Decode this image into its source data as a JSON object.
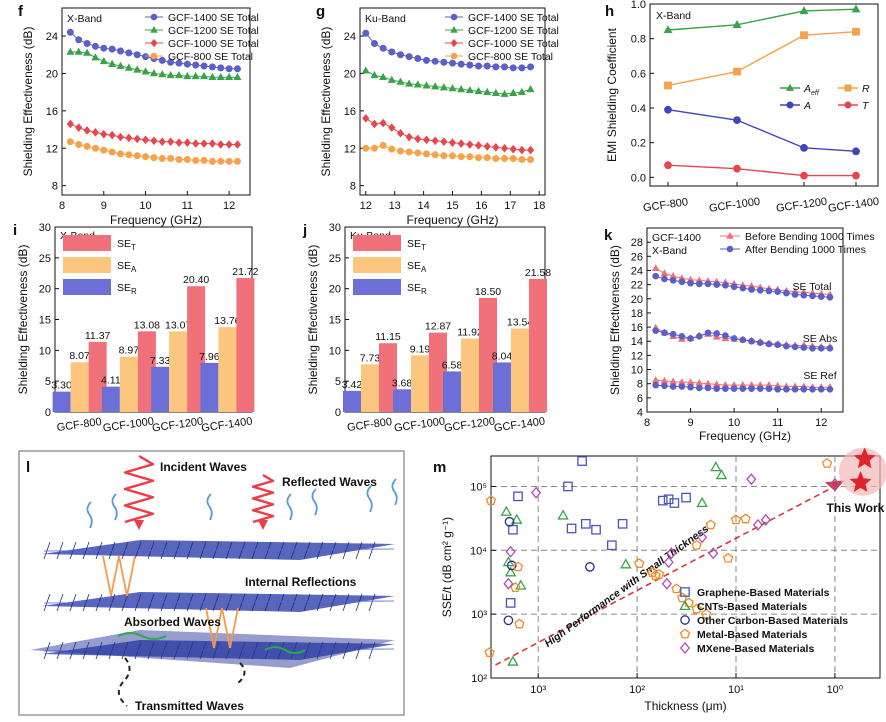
{
  "panels": {
    "f": {
      "letter": "f",
      "tag": "X-Band",
      "xlabel": "Frequency (GHz)",
      "ylabel": "Shielding Effectiveness (dB)",
      "xlim": [
        8,
        12.5
      ],
      "ylim": [
        7,
        27
      ],
      "xticks": [
        8,
        9,
        10,
        11,
        12
      ],
      "yticks": [
        8,
        12,
        16,
        20,
        24
      ]
    },
    "g": {
      "letter": "g",
      "tag": "Ku-Band",
      "xlabel": "Frequency (GHz)",
      "ylabel": "Shielding Effectiveness (dB)",
      "xlim": [
        11.8,
        18.2
      ],
      "ylim": [
        7,
        27
      ],
      "xticks": [
        12,
        13,
        14,
        15,
        16,
        17,
        18
      ],
      "yticks": [
        8,
        12,
        16,
        20,
        24
      ]
    },
    "h": {
      "letter": "h",
      "tag": "X-Band",
      "ylabel": "EMI Shielding Coefficient",
      "ylim": [
        -0.05,
        1.0
      ],
      "yticks": [
        0.0,
        0.2,
        0.4,
        0.6,
        0.8,
        1.0
      ],
      "categories": [
        "GCF-800",
        "GCF-1000",
        "GCF-1200",
        "GCF-1400"
      ]
    },
    "i": {
      "letter": "i",
      "tag": "X-Band",
      "ylabel": "Shielding Effectiveness (dB)",
      "ylim": [
        0,
        30
      ],
      "yticks": [
        0,
        5,
        10,
        15,
        20,
        25,
        30
      ],
      "categories": [
        "GCF-800",
        "GCF-1000",
        "GCF-1200",
        "GCF-1400"
      ]
    },
    "j": {
      "letter": "j",
      "tag": "Ku-Band",
      "ylabel": "Shielding Effectiveness (dB)",
      "ylim": [
        0,
        30
      ],
      "yticks": [
        0,
        5,
        10,
        15,
        20,
        25,
        30
      ],
      "categories": [
        "GCF-800",
        "GCF-1000",
        "GCF-1200",
        "GCF-1400"
      ]
    },
    "k": {
      "letter": "k",
      "tag": "GCF-1400",
      "tag2": "X-Band",
      "xlabel": "Frequency (GHz)",
      "ylabel": "Shielding Effectiveness (dB)",
      "xlim": [
        8,
        12.5
      ],
      "ylim": [
        4,
        30
      ],
      "xticks": [
        8,
        9,
        10,
        11,
        12
      ],
      "yticks": [
        4,
        6,
        8,
        10,
        12,
        14,
        16,
        18,
        20,
        22,
        24,
        26,
        28
      ],
      "labels": [
        "SE Total",
        "SE Abs",
        "SE Ref"
      ]
    },
    "l": {
      "letter": "l",
      "incident": "Incident Waves",
      "reflected": "Reflected Waves",
      "internal": "Internal Reflections",
      "absorbed": "Absorbed Waves",
      "transmitted": "Transmitted Waves"
    },
    "m": {
      "letter": "m",
      "xlabel": "Thickness (μm)",
      "ylabel": "SSE/t (dB cm² g⁻¹)",
      "this_work": "This Work",
      "trend": "High Performance with Small Thickness",
      "xticks": [
        "10³",
        "10²",
        "10¹",
        "10⁰"
      ],
      "yticks": [
        "10²",
        "10³",
        "10⁴",
        "10⁵"
      ]
    }
  },
  "chart_data": [
    {
      "panel": "f",
      "type": "line",
      "x": [
        8.2,
        8.4,
        8.6,
        8.8,
        9.0,
        9.2,
        9.4,
        9.6,
        9.8,
        10.0,
        10.2,
        10.4,
        10.6,
        10.8,
        11.0,
        11.2,
        11.4,
        11.6,
        11.8,
        12.0,
        12.2
      ],
      "series": [
        {
          "name": "GCF-1400 SE Total",
          "color": "#5b5fc7",
          "marker": "circle",
          "values": [
            24.4,
            23.6,
            23.2,
            22.9,
            22.7,
            22.6,
            22.4,
            22.2,
            22.0,
            21.8,
            21.6,
            21.4,
            21.2,
            21.1,
            21.0,
            20.9,
            20.8,
            20.7,
            20.6,
            20.5,
            20.5
          ]
        },
        {
          "name": "GCF-1200 SE Total",
          "color": "#3aa34a",
          "marker": "triangle",
          "values": [
            22.3,
            22.3,
            22.2,
            21.7,
            21.3,
            21.0,
            20.8,
            20.6,
            20.4,
            20.2,
            20.0,
            19.9,
            19.8,
            19.8,
            19.7,
            19.7,
            19.7,
            19.6,
            19.6,
            19.6,
            19.6
          ]
        },
        {
          "name": "GCF-1000 SE Total",
          "color": "#e8464e",
          "marker": "diamond",
          "values": [
            14.6,
            14.2,
            13.9,
            13.7,
            13.5,
            13.4,
            13.2,
            13.1,
            13.0,
            12.9,
            12.8,
            12.7,
            12.7,
            12.6,
            12.6,
            12.5,
            12.5,
            12.5,
            12.4,
            12.4,
            12.4
          ]
        },
        {
          "name": "GCF-800 SE Total",
          "color": "#f5a24a",
          "marker": "circle",
          "values": [
            12.7,
            12.4,
            12.2,
            12.0,
            11.8,
            11.6,
            11.4,
            11.3,
            11.2,
            11.1,
            11.0,
            10.9,
            10.9,
            10.8,
            10.8,
            10.7,
            10.7,
            10.6,
            10.6,
            10.6,
            10.6
          ]
        }
      ]
    },
    {
      "panel": "g",
      "type": "line",
      "x": [
        12.0,
        12.3,
        12.6,
        12.9,
        13.2,
        13.5,
        13.8,
        14.1,
        14.4,
        14.7,
        15.0,
        15.3,
        15.6,
        15.9,
        16.2,
        16.5,
        16.8,
        17.1,
        17.4,
        17.7
      ],
      "series": [
        {
          "name": "GCF-1400 SE Total",
          "color": "#5b5fc7",
          "marker": "circle",
          "values": [
            24.3,
            23.2,
            22.7,
            22.3,
            22.0,
            21.8,
            21.6,
            21.4,
            21.3,
            21.2,
            21.1,
            21.0,
            20.9,
            20.8,
            20.8,
            20.7,
            20.7,
            20.6,
            20.6,
            20.7
          ]
        },
        {
          "name": "GCF-1200 SE Total",
          "color": "#3aa34a",
          "marker": "triangle",
          "values": [
            20.3,
            19.8,
            19.6,
            19.3,
            19.1,
            18.9,
            18.8,
            18.7,
            18.6,
            18.5,
            18.4,
            18.3,
            18.2,
            18.1,
            18.0,
            17.9,
            17.8,
            17.9,
            18.0,
            18.3
          ]
        },
        {
          "name": "GCF-1000 SE Total",
          "color": "#e8464e",
          "marker": "diamond",
          "values": [
            15.2,
            14.6,
            14.7,
            14.2,
            13.6,
            13.2,
            13.0,
            12.9,
            12.8,
            12.7,
            12.6,
            12.5,
            12.4,
            12.3,
            12.2,
            12.1,
            12.0,
            11.9,
            11.8,
            11.8
          ]
        },
        {
          "name": "GCF-800  SE Total",
          "color": "#f5a24a",
          "marker": "circle",
          "values": [
            12.0,
            12.0,
            12.3,
            11.9,
            11.7,
            11.6,
            11.5,
            11.4,
            11.3,
            11.2,
            11.2,
            11.1,
            11.1,
            11.0,
            11.0,
            10.9,
            10.9,
            10.9,
            10.8,
            10.8
          ]
        }
      ]
    },
    {
      "panel": "h",
      "type": "line",
      "categories": [
        "GCF-800",
        "GCF-1000",
        "GCF-1200",
        "GCF-1400"
      ],
      "series": [
        {
          "name": "A_eff",
          "color": "#3aa34a",
          "marker": "triangle",
          "values": [
            0.85,
            0.88,
            0.96,
            0.97
          ]
        },
        {
          "name": "R",
          "color": "#f5a24a",
          "marker": "square",
          "values": [
            0.53,
            0.61,
            0.82,
            0.84
          ]
        },
        {
          "name": "A",
          "color": "#4046b5",
          "marker": "circle",
          "values": [
            0.39,
            0.33,
            0.17,
            0.15
          ]
        },
        {
          "name": "T",
          "color": "#e8464e",
          "marker": "circle",
          "values": [
            0.07,
            0.05,
            0.01,
            0.01
          ]
        }
      ]
    },
    {
      "panel": "i",
      "type": "bar",
      "categories": [
        "GCF-800",
        "GCF-1000",
        "GCF-1200",
        "GCF-1400"
      ],
      "series": [
        {
          "name": "SE_R",
          "color": "#6c6fd6",
          "values": [
            3.3,
            4.11,
            7.33,
            7.96
          ],
          "labels": [
            "3.30",
            "4.11",
            "7.33",
            "7.96"
          ]
        },
        {
          "name": "SE_A",
          "color": "#fdc67e",
          "values": [
            8.07,
            8.97,
            13.07,
            13.76
          ],
          "labels": [
            "8.07",
            "8.97",
            "13.07",
            "13.76"
          ]
        },
        {
          "name": "SE_T",
          "color": "#f0717a",
          "values": [
            11.37,
            13.08,
            20.4,
            21.72
          ],
          "labels": [
            "11.37",
            "13.08",
            "20.40",
            "21.72"
          ]
        }
      ]
    },
    {
      "panel": "j",
      "type": "bar",
      "categories": [
        "GCF-800",
        "GCF-1000",
        "GCF-1200",
        "GCF-1400"
      ],
      "series": [
        {
          "name": "SE_R",
          "color": "#6c6fd6",
          "values": [
            3.42,
            3.68,
            6.58,
            8.04
          ],
          "labels": [
            "3.42",
            "3.68",
            "6.58",
            "8.04"
          ]
        },
        {
          "name": "SE_A",
          "color": "#fdc67e",
          "values": [
            7.73,
            9.19,
            11.92,
            13.54
          ],
          "labels": [
            "7.73",
            "9.19",
            "11.92",
            "13.54"
          ]
        },
        {
          "name": "SE_T",
          "color": "#f0717a",
          "values": [
            11.15,
            12.87,
            18.5,
            21.58
          ],
          "labels": [
            "11.15",
            "12.87",
            "18.50",
            "21.58"
          ]
        }
      ]
    },
    {
      "panel": "k",
      "type": "line",
      "x": [
        8.2,
        8.4,
        8.6,
        8.8,
        9.0,
        9.2,
        9.4,
        9.6,
        9.8,
        10.0,
        10.2,
        10.4,
        10.6,
        10.8,
        11.0,
        11.2,
        11.4,
        11.6,
        11.8,
        12.0,
        12.2
      ],
      "series": [
        {
          "name": "Before Bending 1000 Times",
          "color": "#f07078",
          "marker": "triangle",
          "total": [
            24.3,
            23.6,
            23.2,
            22.9,
            22.7,
            22.6,
            22.5,
            22.4,
            22.3,
            22.1,
            21.9,
            21.8,
            21.6,
            21.4,
            21.3,
            21.1,
            21.0,
            20.9,
            20.8,
            20.7,
            20.6
          ],
          "abs": [
            15.9,
            15.2,
            14.7,
            14.3,
            14.4,
            14.8,
            15.0,
            14.6,
            14.4,
            14.3,
            14.2,
            14.1,
            13.9,
            13.7,
            13.6,
            13.5,
            13.4,
            13.4,
            13.3,
            13.2,
            13.2
          ],
          "ref": [
            8.5,
            8.4,
            8.3,
            8.2,
            8.2,
            8.1,
            8.0,
            7.9,
            7.8,
            7.8,
            7.8,
            7.8,
            7.8,
            7.8,
            7.7,
            7.6,
            7.6,
            7.6,
            7.5,
            7.5,
            7.5
          ]
        },
        {
          "name": "After Bending 1000 Times",
          "color": "#5b5fc7",
          "marker": "circle",
          "total": [
            23.2,
            22.8,
            22.6,
            22.4,
            22.2,
            22.1,
            22.1,
            22.0,
            21.9,
            21.7,
            21.5,
            21.3,
            21.2,
            21.1,
            21.0,
            20.8,
            20.6,
            20.5,
            20.4,
            20.3,
            20.2
          ],
          "abs": [
            15.5,
            15.2,
            15.0,
            14.7,
            14.4,
            14.7,
            15.2,
            15.1,
            14.8,
            14.4,
            14.2,
            14.0,
            13.8,
            13.6,
            13.5,
            13.3,
            13.2,
            13.1,
            13.0,
            13.0,
            13.0
          ],
          "ref": [
            7.8,
            7.7,
            7.6,
            7.6,
            7.5,
            7.4,
            7.4,
            7.3,
            7.3,
            7.3,
            7.3,
            7.3,
            7.3,
            7.3,
            7.2,
            7.2,
            7.2,
            7.2,
            7.2,
            7.2,
            7.2
          ]
        }
      ]
    },
    {
      "panel": "m",
      "type": "scatter",
      "x_scale": "log (reversed)",
      "y_scale": "log",
      "xlim": [
        3000,
        0.35
      ],
      "ylim": [
        100,
        300000
      ],
      "series": [
        {
          "name": "Graphene-Based Materials",
          "color": "#4a55b8",
          "marker": "square",
          "points": [
            [
              1600,
              70000
            ],
            [
              1800,
              21000
            ],
            [
              1900,
              1500
            ],
            [
              500,
              100000
            ],
            [
              460,
              22000
            ],
            [
              360,
              250000
            ],
            [
              330,
              26000
            ],
            [
              260,
              21000
            ],
            [
              180,
              12000
            ],
            [
              140,
              26000
            ],
            [
              55,
              60000
            ],
            [
              48,
              63000
            ],
            [
              42,
              55000
            ],
            [
              32,
              67000
            ]
          ]
        },
        {
          "name": "CNTs-Based Materials",
          "color": "#3aa34a",
          "marker": "triangle",
          "points": [
            [
              1900,
              4500
            ],
            [
              1800,
              180
            ],
            [
              2000,
              6500
            ],
            [
              1500,
              2800
            ],
            [
              2100,
              40000
            ],
            [
              1650,
              30000
            ],
            [
              560,
              35000
            ],
            [
              130,
              6000
            ],
            [
              16,
              200000
            ],
            [
              14,
              150000
            ],
            [
              22,
              55000
            ]
          ]
        },
        {
          "name": "Other Carbon-Based Materials",
          "color": "#2a2f8a",
          "marker": "circle",
          "points": [
            [
              1950,
              28000
            ],
            [
              1850,
              5800
            ],
            [
              2000,
              800
            ],
            [
              300,
              5500
            ]
          ]
        },
        {
          "name": "Metal-Based Materials",
          "color": "#f08a24",
          "marker": "pentagon",
          "points": [
            [
              3000,
              60000
            ],
            [
              3100,
              250
            ],
            [
              1600,
              5500
            ],
            [
              1700,
              2600
            ],
            [
              1550,
              700
            ],
            [
              95,
              6200
            ],
            [
              65,
              4000
            ],
            [
              70,
              4500
            ],
            [
              60,
              4200
            ],
            [
              40,
              2500
            ],
            [
              35,
              1800
            ],
            [
              30,
              1500
            ],
            [
              25,
              1200
            ],
            [
              20,
              1000
            ],
            [
              10,
              30000
            ],
            [
              25,
              12000
            ],
            [
              12,
              7500
            ],
            [
              18,
              25000
            ],
            [
              8,
              31000
            ],
            [
              1.2,
              230000
            ]
          ]
        },
        {
          "name": "MXene-Based Materials",
          "color": "#b04cb8",
          "marker": "diamond",
          "points": [
            [
              1050,
              80000
            ],
            [
              1900,
              9500
            ],
            [
              2000,
              3000
            ],
            [
              45,
              9000
            ],
            [
              50,
              3000
            ],
            [
              48,
              6500
            ],
            [
              22,
              16000
            ],
            [
              17,
              9000
            ],
            [
              6,
              25000
            ],
            [
              7,
              130000
            ],
            [
              5,
              30000
            ],
            [
              1,
              110000
            ]
          ]
        },
        {
          "name": "This Work",
          "color": "#e0242e",
          "marker": "star",
          "points": [
            [
              0.5,
              270000
            ],
            [
              0.55,
              115000
            ]
          ]
        }
      ]
    }
  ]
}
